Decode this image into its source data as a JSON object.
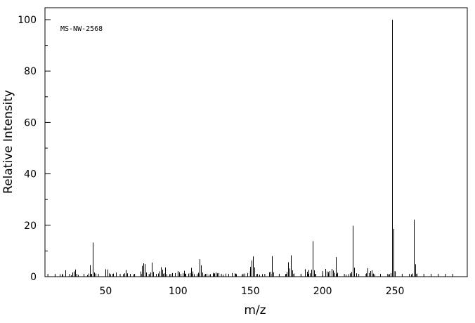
{
  "chart_data": {
    "type": "bar",
    "annotation": "MS-NW-2568",
    "xlabel": "m/z",
    "ylabel": "Relative Intensity",
    "xlim": [
      8,
      300
    ],
    "ylim": [
      0,
      105
    ],
    "x_ticks": [
      50,
      100,
      150,
      200,
      250
    ],
    "y_ticks": [
      0,
      20,
      40,
      60,
      80,
      100
    ],
    "grid": false,
    "bar_color": "#000000",
    "peaks": [
      {
        "x": 15,
        "y": 0.6
      },
      {
        "x": 18,
        "y": 1.0
      },
      {
        "x": 20,
        "y": 0.8
      },
      {
        "x": 22,
        "y": 2.5
      },
      {
        "x": 26,
        "y": 0.5
      },
      {
        "x": 27,
        "y": 1.6
      },
      {
        "x": 28,
        "y": 2.0
      },
      {
        "x": 29,
        "y": 2.8
      },
      {
        "x": 31,
        "y": 0.7
      },
      {
        "x": 37,
        "y": 0.6
      },
      {
        "x": 38,
        "y": 1.2
      },
      {
        "x": 39,
        "y": 4.5
      },
      {
        "x": 40,
        "y": 1.0
      },
      {
        "x": 41,
        "y": 13.3
      },
      {
        "x": 42,
        "y": 1.6
      },
      {
        "x": 43,
        "y": 1.2
      },
      {
        "x": 50,
        "y": 2.9
      },
      {
        "x": 51,
        "y": 2.8
      },
      {
        "x": 52,
        "y": 1.3
      },
      {
        "x": 53,
        "y": 1.0
      },
      {
        "x": 55,
        "y": 1.2
      },
      {
        "x": 57,
        "y": 1.6
      },
      {
        "x": 62,
        "y": 1.0
      },
      {
        "x": 63,
        "y": 1.3
      },
      {
        "x": 64,
        "y": 2.6
      },
      {
        "x": 65,
        "y": 1.3
      },
      {
        "x": 67,
        "y": 1.1
      },
      {
        "x": 69,
        "y": 0.9
      },
      {
        "x": 74,
        "y": 2.0
      },
      {
        "x": 75,
        "y": 4.2
      },
      {
        "x": 76,
        "y": 5.2
      },
      {
        "x": 77,
        "y": 4.9
      },
      {
        "x": 78,
        "y": 1.6
      },
      {
        "x": 80,
        "y": 0.8
      },
      {
        "x": 81,
        "y": 1.6
      },
      {
        "x": 82,
        "y": 5.5
      },
      {
        "x": 83,
        "y": 1.8
      },
      {
        "x": 86,
        "y": 1.2
      },
      {
        "x": 87,
        "y": 2.1
      },
      {
        "x": 88,
        "y": 3.7
      },
      {
        "x": 89,
        "y": 2.7
      },
      {
        "x": 90,
        "y": 1.3
      },
      {
        "x": 91,
        "y": 3.6
      },
      {
        "x": 92,
        "y": 1.0
      },
      {
        "x": 94,
        "y": 1.0
      },
      {
        "x": 96,
        "y": 1.4
      },
      {
        "x": 98,
        "y": 1.4
      },
      {
        "x": 100,
        "y": 1.5
      },
      {
        "x": 101,
        "y": 1.7
      },
      {
        "x": 102,
        "y": 1.1
      },
      {
        "x": 103,
        "y": 1.3
      },
      {
        "x": 104,
        "y": 2.3
      },
      {
        "x": 105,
        "y": 1.2
      },
      {
        "x": 107,
        "y": 1.2
      },
      {
        "x": 108,
        "y": 1.4
      },
      {
        "x": 109,
        "y": 3.4
      },
      {
        "x": 110,
        "y": 2.0
      },
      {
        "x": 111,
        "y": 1.0
      },
      {
        "x": 113,
        "y": 1.0
      },
      {
        "x": 114,
        "y": 1.5
      },
      {
        "x": 115,
        "y": 6.8
      },
      {
        "x": 116,
        "y": 4.4
      },
      {
        "x": 117,
        "y": 1.6
      },
      {
        "x": 118,
        "y": 0.8
      },
      {
        "x": 119,
        "y": 1.1
      },
      {
        "x": 121,
        "y": 0.8
      },
      {
        "x": 122,
        "y": 1.0
      },
      {
        "x": 124,
        "y": 1.5
      },
      {
        "x": 125,
        "y": 1.3
      },
      {
        "x": 126,
        "y": 1.6
      },
      {
        "x": 127,
        "y": 1.3
      },
      {
        "x": 128,
        "y": 1.4
      },
      {
        "x": 131,
        "y": 0.8
      },
      {
        "x": 133,
        "y": 1.2
      },
      {
        "x": 137,
        "y": 1.4
      },
      {
        "x": 139,
        "y": 1.3
      },
      {
        "x": 140,
        "y": 1.0
      },
      {
        "x": 144,
        "y": 0.9
      },
      {
        "x": 146,
        "y": 1.2
      },
      {
        "x": 148,
        "y": 1.4
      },
      {
        "x": 150,
        "y": 3.8
      },
      {
        "x": 151,
        "y": 6.3
      },
      {
        "x": 152,
        "y": 7.9
      },
      {
        "x": 153,
        "y": 3.6
      },
      {
        "x": 154,
        "y": 1.0
      },
      {
        "x": 156,
        "y": 0.8
      },
      {
        "x": 158,
        "y": 1.0
      },
      {
        "x": 163,
        "y": 1.7
      },
      {
        "x": 164,
        "y": 1.9
      },
      {
        "x": 165,
        "y": 8.0
      },
      {
        "x": 166,
        "y": 1.7
      },
      {
        "x": 174,
        "y": 1.0
      },
      {
        "x": 175,
        "y": 1.8
      },
      {
        "x": 176,
        "y": 5.6
      },
      {
        "x": 177,
        "y": 3.2
      },
      {
        "x": 178,
        "y": 8.3
      },
      {
        "x": 179,
        "y": 2.5
      },
      {
        "x": 180,
        "y": 1.2
      },
      {
        "x": 185,
        "y": 1.0
      },
      {
        "x": 188,
        "y": 2.9
      },
      {
        "x": 189,
        "y": 1.9
      },
      {
        "x": 190,
        "y": 2.6
      },
      {
        "x": 191,
        "y": 1.3
      },
      {
        "x": 192,
        "y": 2.7
      },
      {
        "x": 193,
        "y": 13.8
      },
      {
        "x": 194,
        "y": 2.5
      },
      {
        "x": 195,
        "y": 1.0
      },
      {
        "x": 200,
        "y": 0.9
      },
      {
        "x": 202,
        "y": 3.0
      },
      {
        "x": 203,
        "y": 2.0
      },
      {
        "x": 204,
        "y": 1.7
      },
      {
        "x": 205,
        "y": 2.2
      },
      {
        "x": 206,
        "y": 3.0
      },
      {
        "x": 207,
        "y": 2.4
      },
      {
        "x": 208,
        "y": 1.5
      },
      {
        "x": 209,
        "y": 7.6
      },
      {
        "x": 210,
        "y": 1.5
      },
      {
        "x": 216,
        "y": 0.8
      },
      {
        "x": 218,
        "y": 1.0
      },
      {
        "x": 219,
        "y": 1.3
      },
      {
        "x": 220,
        "y": 1.8
      },
      {
        "x": 221,
        "y": 19.8
      },
      {
        "x": 222,
        "y": 3.5
      },
      {
        "x": 223,
        "y": 1.3
      },
      {
        "x": 230,
        "y": 1.3
      },
      {
        "x": 231,
        "y": 3.3
      },
      {
        "x": 232,
        "y": 1.4
      },
      {
        "x": 233,
        "y": 2.2
      },
      {
        "x": 234,
        "y": 2.5
      },
      {
        "x": 235,
        "y": 1.2
      },
      {
        "x": 236,
        "y": 0.9
      },
      {
        "x": 245,
        "y": 0.8
      },
      {
        "x": 246,
        "y": 1.0
      },
      {
        "x": 247,
        "y": 1.4
      },
      {
        "x": 248,
        "y": 100
      },
      {
        "x": 249,
        "y": 18.6
      },
      {
        "x": 250,
        "y": 1.9
      },
      {
        "x": 261,
        "y": 0.9
      },
      {
        "x": 262,
        "y": 1.2
      },
      {
        "x": 263,
        "y": 22.2
      },
      {
        "x": 264,
        "y": 4.8
      },
      {
        "x": 265,
        "y": 1.2
      }
    ]
  }
}
